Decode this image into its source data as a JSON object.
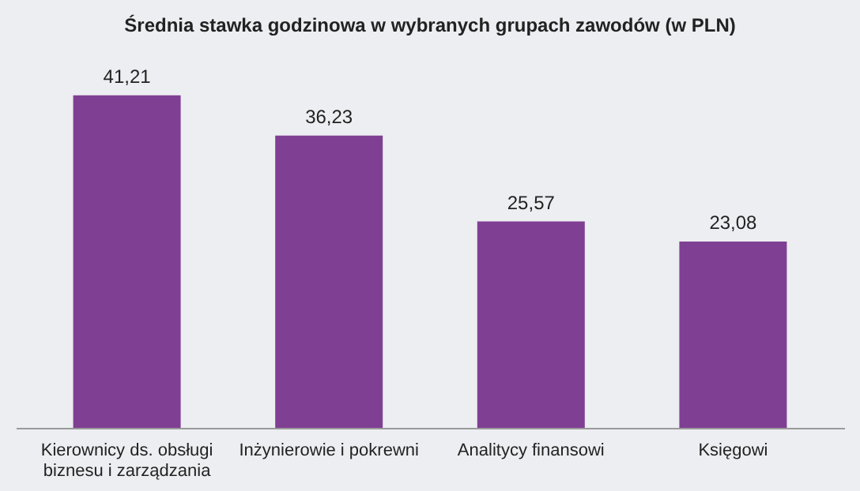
{
  "chart_data": {
    "type": "bar",
    "title": "Średnia stawka godzinowa w wybranych grupach zawodów (w PLN)",
    "categories": [
      "Kierownicy ds. obsługi biznesu i zarządzania",
      "Inżynierowie i pokrewni",
      "Analitycy finansowi",
      "Księgowi"
    ],
    "values": [
      41.21,
      36.23,
      25.57,
      23.08
    ],
    "value_labels": [
      "41,21",
      "36,23",
      "25,57",
      "23,08"
    ],
    "color": "#7f3f93",
    "grid": false
  }
}
